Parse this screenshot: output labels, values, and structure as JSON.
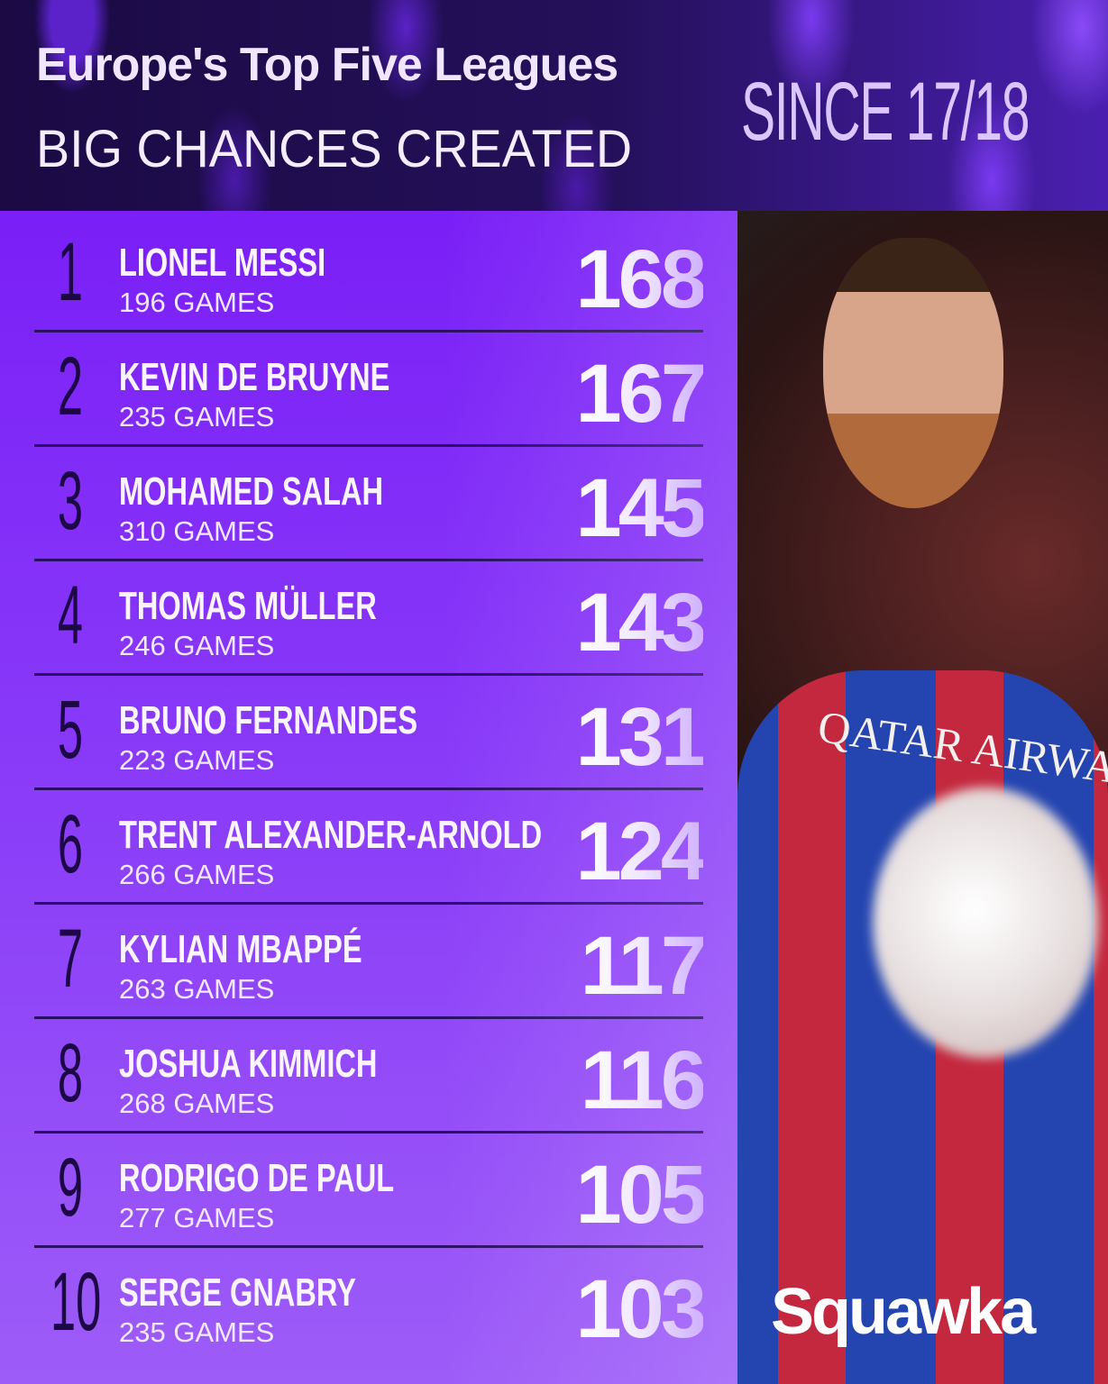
{
  "header": {
    "title": "Europe's Top Five Leagues",
    "subtitle": "BIG CHANCES CREATED",
    "since": "SINCE 17/18"
  },
  "rows": [
    {
      "rank": "1",
      "name": "LIONEL MESSI",
      "games": "196 GAMES",
      "value": "168"
    },
    {
      "rank": "2",
      "name": "KEVIN DE BRUYNE",
      "games": "235 GAMES",
      "value": "167"
    },
    {
      "rank": "3",
      "name": "MOHAMED SALAH",
      "games": "310 GAMES",
      "value": "145"
    },
    {
      "rank": "4",
      "name": "THOMAS MÜLLER",
      "games": "246 GAMES",
      "value": "143"
    },
    {
      "rank": "5",
      "name": "BRUNO FERNANDES",
      "games": "223 GAMES",
      "value": "131"
    },
    {
      "rank": "6",
      "name": "TRENT ALEXANDER-ARNOLD",
      "games": "266 GAMES",
      "value": "124"
    },
    {
      "rank": "7",
      "name": "KYLIAN MBAPPÉ",
      "games": "263 GAMES",
      "value": "117"
    },
    {
      "rank": "8",
      "name": "JOSHUA KIMMICH",
      "games": "268 GAMES",
      "value": "116"
    },
    {
      "rank": "9",
      "name": "RODRIGO DE PAUL",
      "games": "277 GAMES",
      "value": "105"
    },
    {
      "rank": "10",
      "name": "SERGE GNABRY",
      "games": "235 GAMES",
      "value": "103"
    }
  ],
  "photo": {
    "sponsor": "QATAR AIRWAYS"
  },
  "brand": {
    "logo": "Squawka"
  },
  "colors": {
    "header_bg": "#1c0b45",
    "panel": "#7a1ff7",
    "rank": "#1b0845",
    "accent_text": "#dcc6ff"
  }
}
